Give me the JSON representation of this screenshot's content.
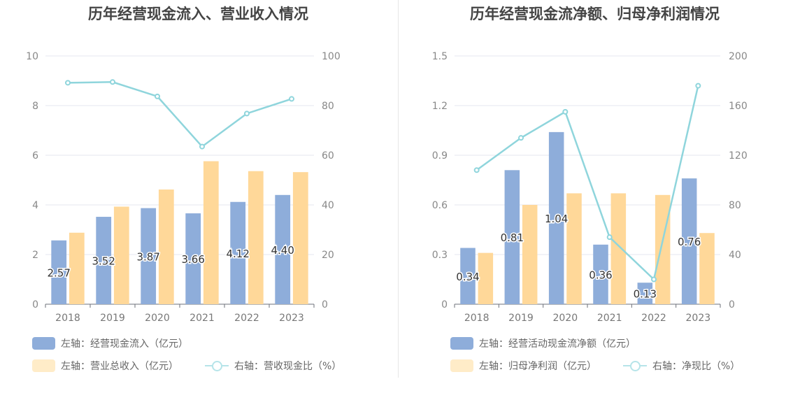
{
  "chart_data": [
    {
      "type": "bar",
      "title": "历年经营现金流入、营业收入情况",
      "categories": [
        "2018",
        "2019",
        "2020",
        "2021",
        "2022",
        "2023"
      ],
      "series": [
        {
          "name": "左轴：经营现金流入（亿元）",
          "axis": "left",
          "values": [
            2.57,
            3.52,
            3.87,
            3.66,
            4.12,
            4.4
          ],
          "color": "#8eadda",
          "labels": [
            "2.57",
            "3.52",
            "3.87",
            "3.66",
            "4.12",
            "4.40"
          ]
        },
        {
          "name": "左轴：营业总收入（亿元）",
          "axis": "left",
          "values": [
            2.88,
            3.93,
            4.62,
            5.76,
            5.36,
            5.32
          ],
          "color": "#ffd899"
        },
        {
          "name": "右轴：营收现金比（%）",
          "axis": "right",
          "type": "line",
          "values": [
            89.2,
            89.5,
            83.7,
            63.5,
            76.8,
            82.7
          ],
          "color": "#8fd5dc"
        }
      ],
      "yleft": {
        "range": [
          0,
          10
        ],
        "ticks": [
          "0",
          "2",
          "4",
          "6",
          "8",
          "10"
        ]
      },
      "yright": {
        "range": [
          0,
          100
        ],
        "ticks": [
          "0",
          "20",
          "40",
          "60",
          "80",
          "100"
        ]
      },
      "grid": true,
      "legend_position": "bottom-left"
    },
    {
      "type": "bar",
      "title": "历年经营现金流净额、归母净利润情况",
      "categories": [
        "2018",
        "2019",
        "2020",
        "2021",
        "2022",
        "2023"
      ],
      "series": [
        {
          "name": "左轴：经营活动现金流净额（亿元）",
          "axis": "left",
          "values": [
            0.34,
            0.81,
            1.04,
            0.36,
            0.13,
            0.76
          ],
          "color": "#8eadda",
          "labels": [
            "0.34",
            "0.81",
            "1.04",
            "0.36",
            "0.13",
            "0.76"
          ]
        },
        {
          "name": "左轴：归母净利润（亿元）",
          "axis": "left",
          "values": [
            0.31,
            0.6,
            0.67,
            0.67,
            0.66,
            0.43
          ],
          "color": "#ffd899"
        },
        {
          "name": "右轴：净现比（%）",
          "axis": "right",
          "type": "line",
          "values": [
            108,
            134,
            155,
            54,
            20,
            176
          ],
          "color": "#8fd5dc"
        }
      ],
      "yleft": {
        "range": [
          0,
          1.5
        ],
        "ticks": [
          "0",
          "0.3",
          "0.6",
          "0.9",
          "1.2",
          "1.5"
        ]
      },
      "yright": {
        "range": [
          0,
          200
        ],
        "ticks": [
          "0",
          "40",
          "80",
          "120",
          "160",
          "200"
        ]
      },
      "grid": true,
      "legend_position": "bottom-left"
    }
  ]
}
